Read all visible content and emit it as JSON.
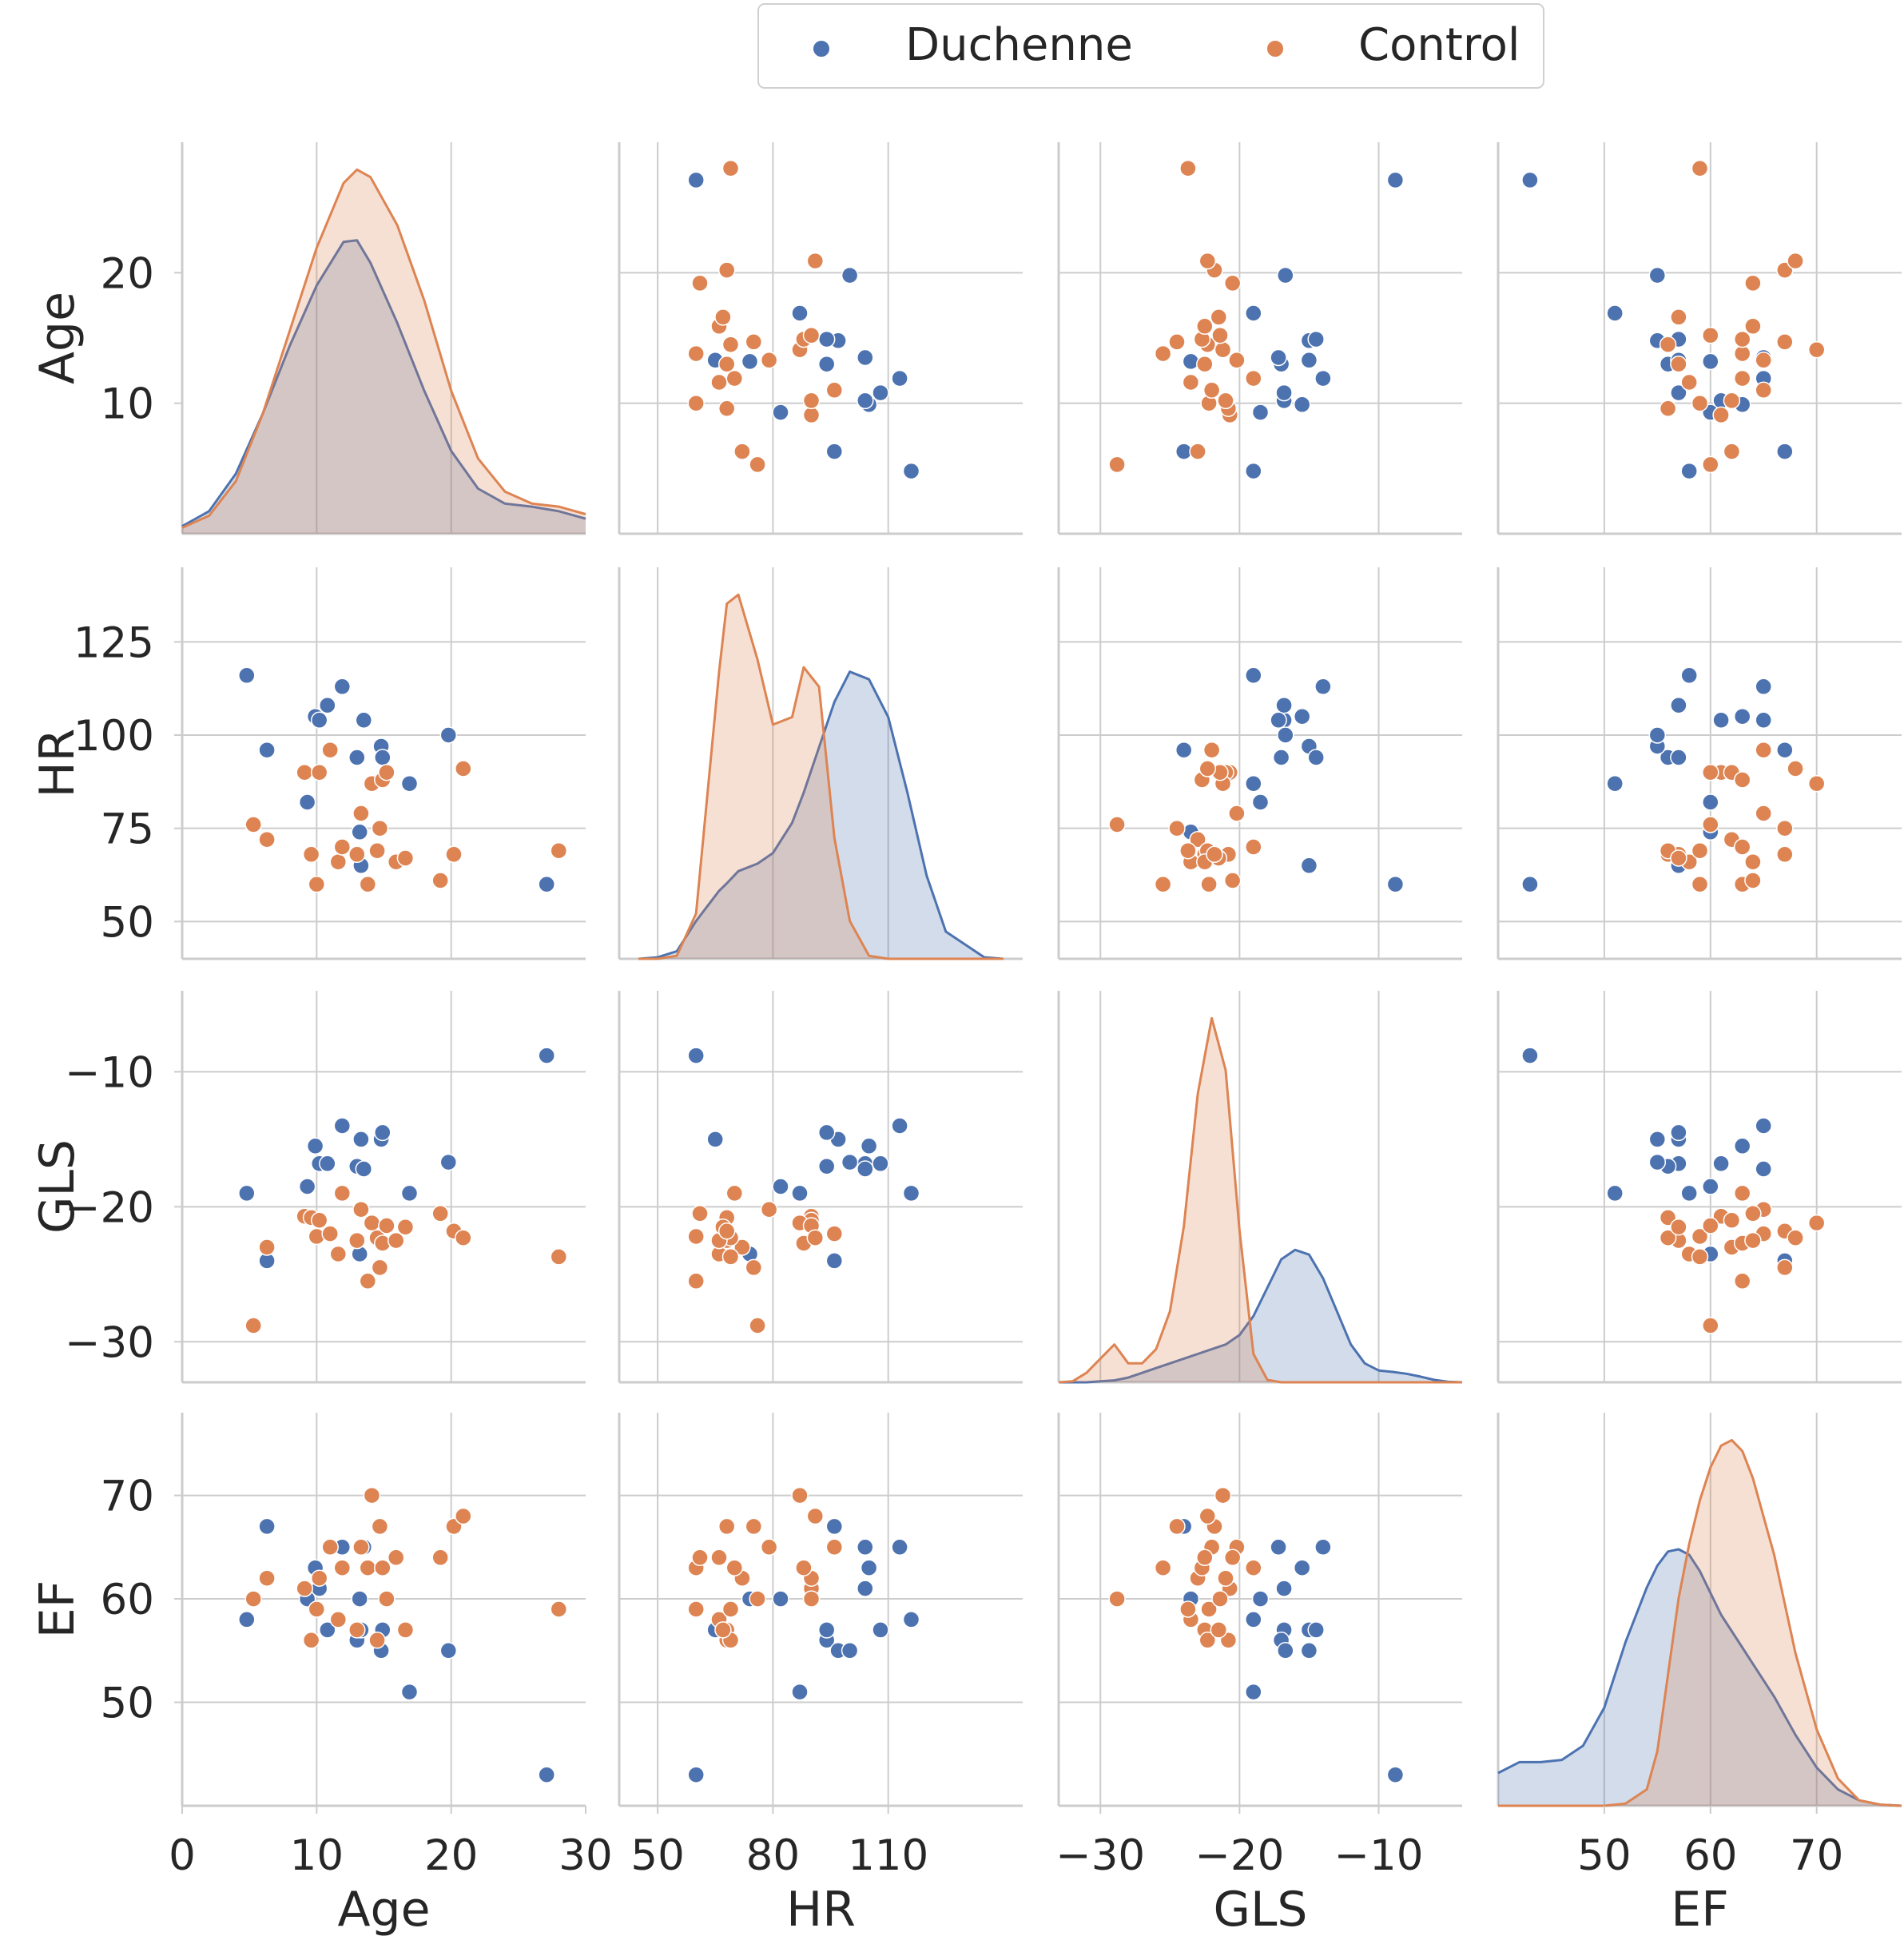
{
  "chart_data": {
    "type": "pairplot",
    "variables": [
      "Age",
      "HR",
      "GLS",
      "EF"
    ],
    "legend": {
      "position": "top-center",
      "entries": [
        {
          "name": "Duchenne",
          "color": "#4c72b0"
        },
        {
          "name": "Control",
          "color": "#dd8452"
        }
      ]
    },
    "ranges": {
      "Age": [
        0,
        30
      ],
      "HR": [
        40,
        145
      ],
      "GLS": [
        -33,
        -4
      ],
      "EF": [
        40,
        78
      ]
    },
    "row_ticks": {
      "Age": [
        {
          "v": 10,
          "label": "10"
        },
        {
          "v": 20,
          "label": "20"
        }
      ],
      "HR": [
        {
          "v": 50,
          "label": "50"
        },
        {
          "v": 75,
          "label": "75"
        },
        {
          "v": 100,
          "label": "100"
        },
        {
          "v": 125,
          "label": "125"
        }
      ],
      "GLS": [
        {
          "v": -30,
          "label": "−30"
        },
        {
          "v": -20,
          "label": "−20"
        },
        {
          "v": -10,
          "label": "−10"
        }
      ],
      "EF": [
        {
          "v": 50,
          "label": "50"
        },
        {
          "v": 60,
          "label": "60"
        },
        {
          "v": 70,
          "label": "70"
        }
      ]
    },
    "col_ticks": {
      "Age": [
        {
          "v": 0,
          "label": "0"
        },
        {
          "v": 10,
          "label": "10"
        },
        {
          "v": 20,
          "label": "20"
        },
        {
          "v": 30,
          "label": "30"
        }
      ],
      "HR": [
        {
          "v": 50,
          "label": "50"
        },
        {
          "v": 80,
          "label": "80"
        },
        {
          "v": 110,
          "label": "110"
        }
      ],
      "GLS": [
        {
          "v": -30,
          "label": "−30"
        },
        {
          "v": -20,
          "label": "−20"
        },
        {
          "v": -10,
          "label": "−10"
        }
      ],
      "EF": [
        {
          "v": 50,
          "label": "50"
        },
        {
          "v": 60,
          "label": "60"
        },
        {
          "v": 70,
          "label": "70"
        }
      ]
    },
    "series": [
      {
        "name": "Duchenne",
        "color": "#4c72b0",
        "points": [
          {
            "Age": 4.8,
            "HR": 116,
            "GLS": -19.0,
            "EF": 58
          },
          {
            "Age": 6.3,
            "HR": 96,
            "GLS": -24.0,
            "EF": 67
          },
          {
            "Age": 9.3,
            "HR": 82,
            "GLS": -18.5,
            "EF": 60
          },
          {
            "Age": 9.9,
            "HR": 105,
            "GLS": -15.5,
            "EF": 63
          },
          {
            "Age": 10.2,
            "HR": 104,
            "GLS": -16.8,
            "EF": 61
          },
          {
            "Age": 10.8,
            "HR": 108,
            "GLS": -16.8,
            "EF": 57
          },
          {
            "Age": 11.9,
            "HR": 113,
            "GLS": -14.0,
            "EF": 65
          },
          {
            "Age": 13.0,
            "HR": 94,
            "GLS": -17.0,
            "EF": 56
          },
          {
            "Age": 13.2,
            "HR": 74,
            "GLS": -23.5,
            "EF": 60
          },
          {
            "Age": 13.3,
            "HR": 65,
            "GLS": -15.0,
            "EF": 57
          },
          {
            "Age": 13.5,
            "HR": 104,
            "GLS": -17.2,
            "EF": 65
          },
          {
            "Age": 14.8,
            "HR": 97,
            "GLS": -15.0,
            "EF": 55
          },
          {
            "Age": 14.9,
            "HR": 94,
            "GLS": -14.5,
            "EF": 57
          },
          {
            "Age": 16.9,
            "HR": 87,
            "GLS": -19.0,
            "EF": 51
          },
          {
            "Age": 19.8,
            "HR": 100,
            "GLS": -16.7,
            "EF": 55
          },
          {
            "Age": 27.1,
            "HR": 60,
            "GLS": -8.8,
            "EF": 43
          }
        ]
      },
      {
        "name": "Control",
        "color": "#dd8452",
        "points": [
          {
            "Age": 5.3,
            "HR": 76,
            "GLS": -28.8,
            "EF": 60
          },
          {
            "Age": 6.3,
            "HR": 72,
            "GLS": -23.0,
            "EF": 62
          },
          {
            "Age": 9.1,
            "HR": 90,
            "GLS": -20.7,
            "EF": 61
          },
          {
            "Age": 9.6,
            "HR": 68,
            "GLS": -20.8,
            "EF": 56
          },
          {
            "Age": 10.0,
            "HR": 60,
            "GLS": -22.2,
            "EF": 59
          },
          {
            "Age": 10.2,
            "HR": 90,
            "GLS": -21.0,
            "EF": 62
          },
          {
            "Age": 11.0,
            "HR": 96,
            "GLS": -22.0,
            "EF": 65
          },
          {
            "Age": 11.6,
            "HR": 66,
            "GLS": -23.5,
            "EF": 58
          },
          {
            "Age": 11.9,
            "HR": 70,
            "GLS": -19.0,
            "EF": 63
          },
          {
            "Age": 13.0,
            "HR": 68,
            "GLS": -22.5,
            "EF": 57
          },
          {
            "Age": 13.3,
            "HR": 79,
            "GLS": -20.2,
            "EF": 65
          },
          {
            "Age": 13.8,
            "HR": 60,
            "GLS": -25.5,
            "EF": 63
          },
          {
            "Age": 14.1,
            "HR": 87,
            "GLS": -21.2,
            "EF": 70
          },
          {
            "Age": 14.5,
            "HR": 69,
            "GLS": -22.3,
            "EF": 56
          },
          {
            "Age": 14.7,
            "HR": 75,
            "GLS": -24.5,
            "EF": 67
          },
          {
            "Age": 14.9,
            "HR": 88,
            "GLS": -22.7,
            "EF": 63
          },
          {
            "Age": 15.2,
            "HR": 90,
            "GLS": -21.4,
            "EF": 60
          },
          {
            "Age": 15.9,
            "HR": 66,
            "GLS": -22.5,
            "EF": 64
          },
          {
            "Age": 16.6,
            "HR": 67,
            "GLS": -21.5,
            "EF": 57
          },
          {
            "Age": 19.2,
            "HR": 61,
            "GLS": -20.5,
            "EF": 64
          },
          {
            "Age": 20.2,
            "HR": 68,
            "GLS": -21.8,
            "EF": 67
          },
          {
            "Age": 20.9,
            "HR": 91,
            "GLS": -22.3,
            "EF": 68
          },
          {
            "Age": 28.0,
            "HR": 69,
            "GLS": -23.7,
            "EF": 59
          }
        ]
      }
    ],
    "kde": {
      "Age": {
        "x": [
          0,
          2,
          4,
          6,
          8,
          10,
          12,
          13,
          14,
          16,
          18,
          20,
          22,
          24,
          26,
          28,
          30
        ],
        "Duchenne": [
          0.5,
          1.5,
          4,
          8,
          12.5,
          16.5,
          19.4,
          19.5,
          18,
          14,
          9.5,
          5.5,
          3,
          2,
          1.8,
          1.5,
          1
        ],
        "Control": [
          0.4,
          1.2,
          3.5,
          8,
          13.5,
          19,
          23.3,
          24.2,
          23.7,
          20.5,
          15.5,
          9.5,
          5,
          2.8,
          2,
          1.8,
          1.3
        ]
      },
      "HR": {
        "x": [
          45,
          50,
          55,
          60,
          63,
          66,
          68,
          71,
          76,
          80,
          85,
          88,
          92,
          96,
          100,
          105,
          110,
          115,
          120,
          125,
          135,
          140
        ],
        "Duchenne": [
          0,
          0.1,
          0.5,
          2.5,
          3.5,
          4.5,
          5,
          5.8,
          6.3,
          7,
          9,
          11,
          14,
          17,
          19,
          18.5,
          16,
          11,
          5.5,
          1.8,
          0.1,
          0
        ],
        "Control": [
          0,
          0,
          0.2,
          3,
          11,
          19,
          23.5,
          24.1,
          19.8,
          15.5,
          16,
          19.3,
          18,
          8,
          2.5,
          0.2,
          0,
          0,
          0,
          0,
          0,
          0
        ]
      },
      "GLS": {
        "x": [
          -33,
          -32,
          -31,
          -30,
          -29,
          -28,
          -27,
          -26,
          -25,
          -24,
          -23,
          -22,
          -21,
          -20,
          -19,
          -18,
          -17,
          -16,
          -15,
          -14,
          -13,
          -12,
          -11,
          -10,
          -9,
          -8,
          -7,
          -6,
          -5,
          -4
        ],
        "Duchenne": [
          0,
          0,
          0,
          0.2,
          0.4,
          1,
          2,
          3,
          4,
          5,
          6,
          7,
          8,
          10,
          14,
          20,
          26,
          28,
          27,
          22,
          15,
          8,
          4,
          2.5,
          2.2,
          1.8,
          1.2,
          0.5,
          0.1,
          0
        ],
        "Control": [
          0,
          0.2,
          2,
          5,
          8,
          4,
          4,
          7,
          15,
          33,
          61,
          77,
          66,
          32,
          6,
          0.5,
          0,
          0,
          0,
          0,
          0,
          0,
          0,
          0,
          0,
          0,
          0,
          0,
          0,
          0
        ]
      },
      "EF": {
        "x": [
          40,
          42,
          44,
          46,
          48,
          50,
          52,
          54,
          55,
          56,
          57,
          58,
          59,
          60,
          61,
          62,
          63,
          64,
          66,
          68,
          70,
          72,
          74,
          76,
          78
        ],
        "Duchenne": [
          3,
          4,
          4,
          4.2,
          5.5,
          9,
          15,
          20,
          22,
          23.3,
          23.5,
          23,
          21.5,
          19.5,
          17.5,
          16,
          14.5,
          13,
          10,
          6.5,
          3.5,
          1.5,
          0.5,
          0.1,
          0
        ],
        "Control": [
          0,
          0,
          0,
          0,
          0,
          0,
          0.2,
          1.5,
          5,
          12,
          19,
          24,
          28,
          31,
          33,
          33.5,
          32.5,
          30,
          23,
          14,
          7,
          2.5,
          0.5,
          0.1,
          0
        ]
      }
    }
  }
}
